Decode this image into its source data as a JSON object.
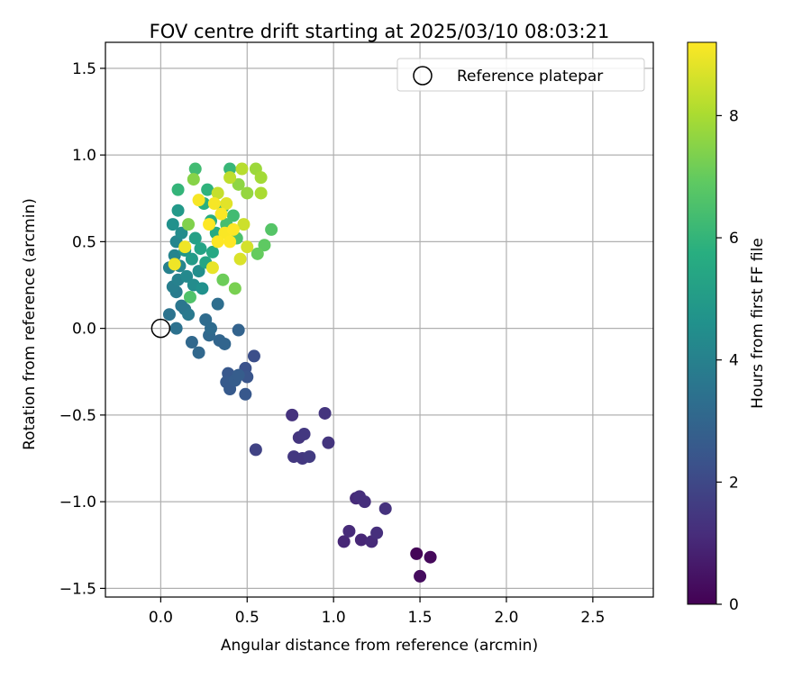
{
  "chart_data": {
    "type": "scatter",
    "title": "FOV centre drift starting at 2025/03/10 08:03:21",
    "xlabel": "Angular distance from reference (arcmin)",
    "ylabel": "Rotation from reference (arcmin)",
    "xlim": [
      -0.32,
      2.85
    ],
    "ylim": [
      -1.55,
      1.65
    ],
    "xticks": [
      0.0,
      0.5,
      1.0,
      1.5,
      2.0,
      2.5
    ],
    "yticks": [
      -1.5,
      -1.0,
      -0.5,
      0.0,
      0.5,
      1.0,
      1.5
    ],
    "xtick_labels": [
      "0.0",
      "0.5",
      "1.0",
      "1.5",
      "2.0",
      "2.5"
    ],
    "ytick_labels": [
      "−1.5",
      "−1.0",
      "−0.5",
      "0.0",
      "0.5",
      "1.0",
      "1.5"
    ],
    "grid": true,
    "legend": {
      "placement": "top-right",
      "entries": [
        {
          "label": "Reference platepar",
          "marker": "open-circle"
        }
      ]
    },
    "reference_point": {
      "x": 0.0,
      "y": 0.0
    },
    "colorbar": {
      "label": "Hours from first FF file",
      "colormap": "viridis",
      "range": [
        0,
        9.2
      ],
      "ticks": [
        0,
        2,
        4,
        6,
        8
      ],
      "tick_labels": [
        "0",
        "2",
        "4",
        "6",
        "8"
      ]
    },
    "points": [
      {
        "x": 1.48,
        "y": -1.3,
        "h": 0.1
      },
      {
        "x": 1.56,
        "y": -1.32,
        "h": 0.2
      },
      {
        "x": 1.5,
        "y": -1.43,
        "h": 0.3
      },
      {
        "x": 1.06,
        "y": -1.23,
        "h": 1.0
      },
      {
        "x": 1.09,
        "y": -1.17,
        "h": 1.1
      },
      {
        "x": 1.16,
        "y": -1.22,
        "h": 1.0
      },
      {
        "x": 1.22,
        "y": -1.23,
        "h": 1.1
      },
      {
        "x": 1.25,
        "y": -1.18,
        "h": 1.2
      },
      {
        "x": 1.13,
        "y": -0.98,
        "h": 1.1
      },
      {
        "x": 1.15,
        "y": -0.97,
        "h": 1.2
      },
      {
        "x": 1.18,
        "y": -1.0,
        "h": 1.2
      },
      {
        "x": 1.3,
        "y": -1.04,
        "h": 1.3
      },
      {
        "x": 0.76,
        "y": -0.5,
        "h": 1.3
      },
      {
        "x": 0.95,
        "y": -0.49,
        "h": 1.4
      },
      {
        "x": 0.8,
        "y": -0.63,
        "h": 1.4
      },
      {
        "x": 0.83,
        "y": -0.61,
        "h": 1.5
      },
      {
        "x": 0.97,
        "y": -0.66,
        "h": 1.4
      },
      {
        "x": 0.77,
        "y": -0.74,
        "h": 1.5
      },
      {
        "x": 0.82,
        "y": -0.75,
        "h": 1.5
      },
      {
        "x": 0.86,
        "y": -0.74,
        "h": 1.6
      },
      {
        "x": 0.55,
        "y": -0.7,
        "h": 1.8
      },
      {
        "x": 0.54,
        "y": -0.16,
        "h": 2.2
      },
      {
        "x": 0.49,
        "y": -0.23,
        "h": 2.3
      },
      {
        "x": 0.5,
        "y": -0.28,
        "h": 2.4
      },
      {
        "x": 0.39,
        "y": -0.26,
        "h": 2.5
      },
      {
        "x": 0.38,
        "y": -0.31,
        "h": 2.6
      },
      {
        "x": 0.4,
        "y": -0.35,
        "h": 2.6
      },
      {
        "x": 0.43,
        "y": -0.3,
        "h": 2.7
      },
      {
        "x": 0.45,
        "y": -0.27,
        "h": 2.7
      },
      {
        "x": 0.49,
        "y": -0.38,
        "h": 2.5
      },
      {
        "x": 0.45,
        "y": -0.01,
        "h": 2.9
      },
      {
        "x": 0.34,
        "y": -0.07,
        "h": 3.0
      },
      {
        "x": 0.37,
        "y": -0.09,
        "h": 3.0
      },
      {
        "x": 0.28,
        "y": -0.04,
        "h": 3.1
      },
      {
        "x": 0.26,
        "y": 0.05,
        "h": 3.2
      },
      {
        "x": 0.18,
        "y": -0.08,
        "h": 3.1
      },
      {
        "x": 0.22,
        "y": -0.14,
        "h": 3.1
      },
      {
        "x": 0.33,
        "y": 0.14,
        "h": 3.3
      },
      {
        "x": 0.29,
        "y": 0.0,
        "h": 3.2
      },
      {
        "x": 0.09,
        "y": 0.0,
        "h": 3.4
      },
      {
        "x": 0.05,
        "y": 0.08,
        "h": 3.5
      },
      {
        "x": 0.14,
        "y": 0.11,
        "h": 3.6
      },
      {
        "x": 0.16,
        "y": 0.08,
        "h": 3.7
      },
      {
        "x": 0.12,
        "y": 0.13,
        "h": 3.6
      },
      {
        "x": 0.09,
        "y": 0.21,
        "h": 3.8
      },
      {
        "x": 0.07,
        "y": 0.24,
        "h": 3.9
      },
      {
        "x": 0.1,
        "y": 0.28,
        "h": 4.0
      },
      {
        "x": 0.05,
        "y": 0.35,
        "h": 4.0
      },
      {
        "x": 0.08,
        "y": 0.42,
        "h": 4.1
      },
      {
        "x": 0.11,
        "y": 0.36,
        "h": 4.2
      },
      {
        "x": 0.15,
        "y": 0.3,
        "h": 4.3
      },
      {
        "x": 0.19,
        "y": 0.25,
        "h": 4.4
      },
      {
        "x": 0.22,
        "y": 0.33,
        "h": 4.5
      },
      {
        "x": 0.24,
        "y": 0.23,
        "h": 4.6
      },
      {
        "x": 0.09,
        "y": 0.5,
        "h": 4.2
      },
      {
        "x": 0.12,
        "y": 0.55,
        "h": 4.4
      },
      {
        "x": 0.07,
        "y": 0.6,
        "h": 4.6
      },
      {
        "x": 0.1,
        "y": 0.68,
        "h": 4.9
      },
      {
        "x": 0.14,
        "y": 0.45,
        "h": 4.8
      },
      {
        "x": 0.18,
        "y": 0.4,
        "h": 5.0
      },
      {
        "x": 0.2,
        "y": 0.52,
        "h": 5.2
      },
      {
        "x": 0.23,
        "y": 0.46,
        "h": 5.3
      },
      {
        "x": 0.26,
        "y": 0.38,
        "h": 5.4
      },
      {
        "x": 0.3,
        "y": 0.44,
        "h": 5.5
      },
      {
        "x": 0.32,
        "y": 0.55,
        "h": 5.6
      },
      {
        "x": 0.29,
        "y": 0.62,
        "h": 5.7
      },
      {
        "x": 0.25,
        "y": 0.72,
        "h": 5.8
      },
      {
        "x": 0.27,
        "y": 0.8,
        "h": 5.9
      },
      {
        "x": 0.1,
        "y": 0.8,
        "h": 6.0
      },
      {
        "x": 0.2,
        "y": 0.92,
        "h": 6.3
      },
      {
        "x": 0.4,
        "y": 0.92,
        "h": 6.1
      },
      {
        "x": 0.36,
        "y": 0.7,
        "h": 6.2
      },
      {
        "x": 0.42,
        "y": 0.65,
        "h": 6.3
      },
      {
        "x": 0.38,
        "y": 0.6,
        "h": 6.4
      },
      {
        "x": 0.44,
        "y": 0.52,
        "h": 6.5
      },
      {
        "x": 0.17,
        "y": 0.18,
        "h": 6.6
      },
      {
        "x": 0.64,
        "y": 0.57,
        "h": 6.7
      },
      {
        "x": 0.6,
        "y": 0.48,
        "h": 6.9
      },
      {
        "x": 0.56,
        "y": 0.43,
        "h": 7.0
      },
      {
        "x": 0.36,
        "y": 0.28,
        "h": 7.1
      },
      {
        "x": 0.43,
        "y": 0.23,
        "h": 7.3
      },
      {
        "x": 0.16,
        "y": 0.6,
        "h": 7.4
      },
      {
        "x": 0.19,
        "y": 0.86,
        "h": 7.5
      },
      {
        "x": 0.45,
        "y": 0.83,
        "h": 7.6
      },
      {
        "x": 0.5,
        "y": 0.78,
        "h": 7.7
      },
      {
        "x": 0.55,
        "y": 0.92,
        "h": 7.8
      },
      {
        "x": 0.58,
        "y": 0.87,
        "h": 7.9
      },
      {
        "x": 0.58,
        "y": 0.78,
        "h": 8.0
      },
      {
        "x": 0.47,
        "y": 0.92,
        "h": 8.2
      },
      {
        "x": 0.4,
        "y": 0.87,
        "h": 8.3
      },
      {
        "x": 0.33,
        "y": 0.78,
        "h": 8.4
      },
      {
        "x": 0.48,
        "y": 0.6,
        "h": 8.5
      },
      {
        "x": 0.5,
        "y": 0.47,
        "h": 8.6
      },
      {
        "x": 0.46,
        "y": 0.4,
        "h": 8.7
      },
      {
        "x": 0.38,
        "y": 0.72,
        "h": 8.8
      },
      {
        "x": 0.3,
        "y": 0.35,
        "h": 8.9
      },
      {
        "x": 0.08,
        "y": 0.37,
        "h": 9.0
      },
      {
        "x": 0.14,
        "y": 0.47,
        "h": 9.0
      },
      {
        "x": 0.22,
        "y": 0.74,
        "h": 9.1
      },
      {
        "x": 0.31,
        "y": 0.72,
        "h": 9.1
      },
      {
        "x": 0.35,
        "y": 0.66,
        "h": 9.15
      },
      {
        "x": 0.37,
        "y": 0.55,
        "h": 9.15
      },
      {
        "x": 0.42,
        "y": 0.57,
        "h": 9.2
      },
      {
        "x": 0.28,
        "y": 0.6,
        "h": 9.2
      },
      {
        "x": 0.33,
        "y": 0.5,
        "h": 9.2
      },
      {
        "x": 0.4,
        "y": 0.5,
        "h": 9.2
      }
    ]
  }
}
